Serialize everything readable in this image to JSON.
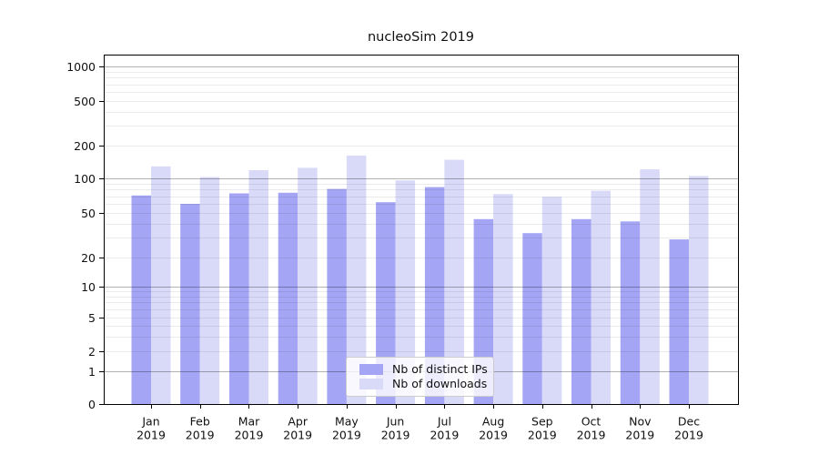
{
  "chart_data": {
    "type": "bar",
    "title": "nucleoSim 2019",
    "categories": [
      "Jan",
      "Feb",
      "Mar",
      "Apr",
      "May",
      "Jun",
      "Jul",
      "Aug",
      "Sep",
      "Oct",
      "Nov",
      "Dec"
    ],
    "category_year": "2019",
    "series": [
      {
        "name": "Nb of distinct IPs",
        "color": "#a5a5f5",
        "values": [
          71,
          60,
          74,
          75,
          81,
          62,
          84,
          44,
          33,
          44,
          42,
          29
        ]
      },
      {
        "name": "Nb of downloads",
        "color": "#d9d9f8",
        "values": [
          129,
          103,
          119,
          125,
          162,
          96,
          148,
          73,
          69,
          78,
          121,
          105
        ]
      }
    ],
    "yscale": "symlog",
    "yticks": [
      0,
      1,
      2,
      5,
      10,
      20,
      50,
      100,
      200,
      500,
      1000
    ],
    "ylim": [
      0,
      1300
    ],
    "xlabel": "",
    "ylabel": "",
    "grid": true,
    "legend_position": "lower center"
  }
}
